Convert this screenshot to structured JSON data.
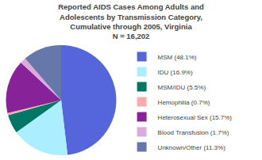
{
  "chart_data": {
    "type": "pie",
    "title": "Reported AIDS Cases Among Adults and\nAdolescents by Transmission Category,\nCumulative through 2005, Virginia\nN = 16,202",
    "categories": [
      "MSM (48.1%)",
      "IDU (16.9%)",
      "MSM/IDU (5.5%)",
      "Hemophilia (0.7%)",
      "Heterosexual Sex (15.7%)",
      "Blood Transfusion (1.7%)",
      "Unknown/Other (11.3%)"
    ],
    "values": [
      48.1,
      16.9,
      5.5,
      0.7,
      15.7,
      1.7,
      11.3
    ],
    "colors": [
      "#5566dd",
      "#aaeeff",
      "#007766",
      "#ffaaaa",
      "#882299",
      "#ddaadd",
      "#6677aa"
    ],
    "legend": "right"
  }
}
